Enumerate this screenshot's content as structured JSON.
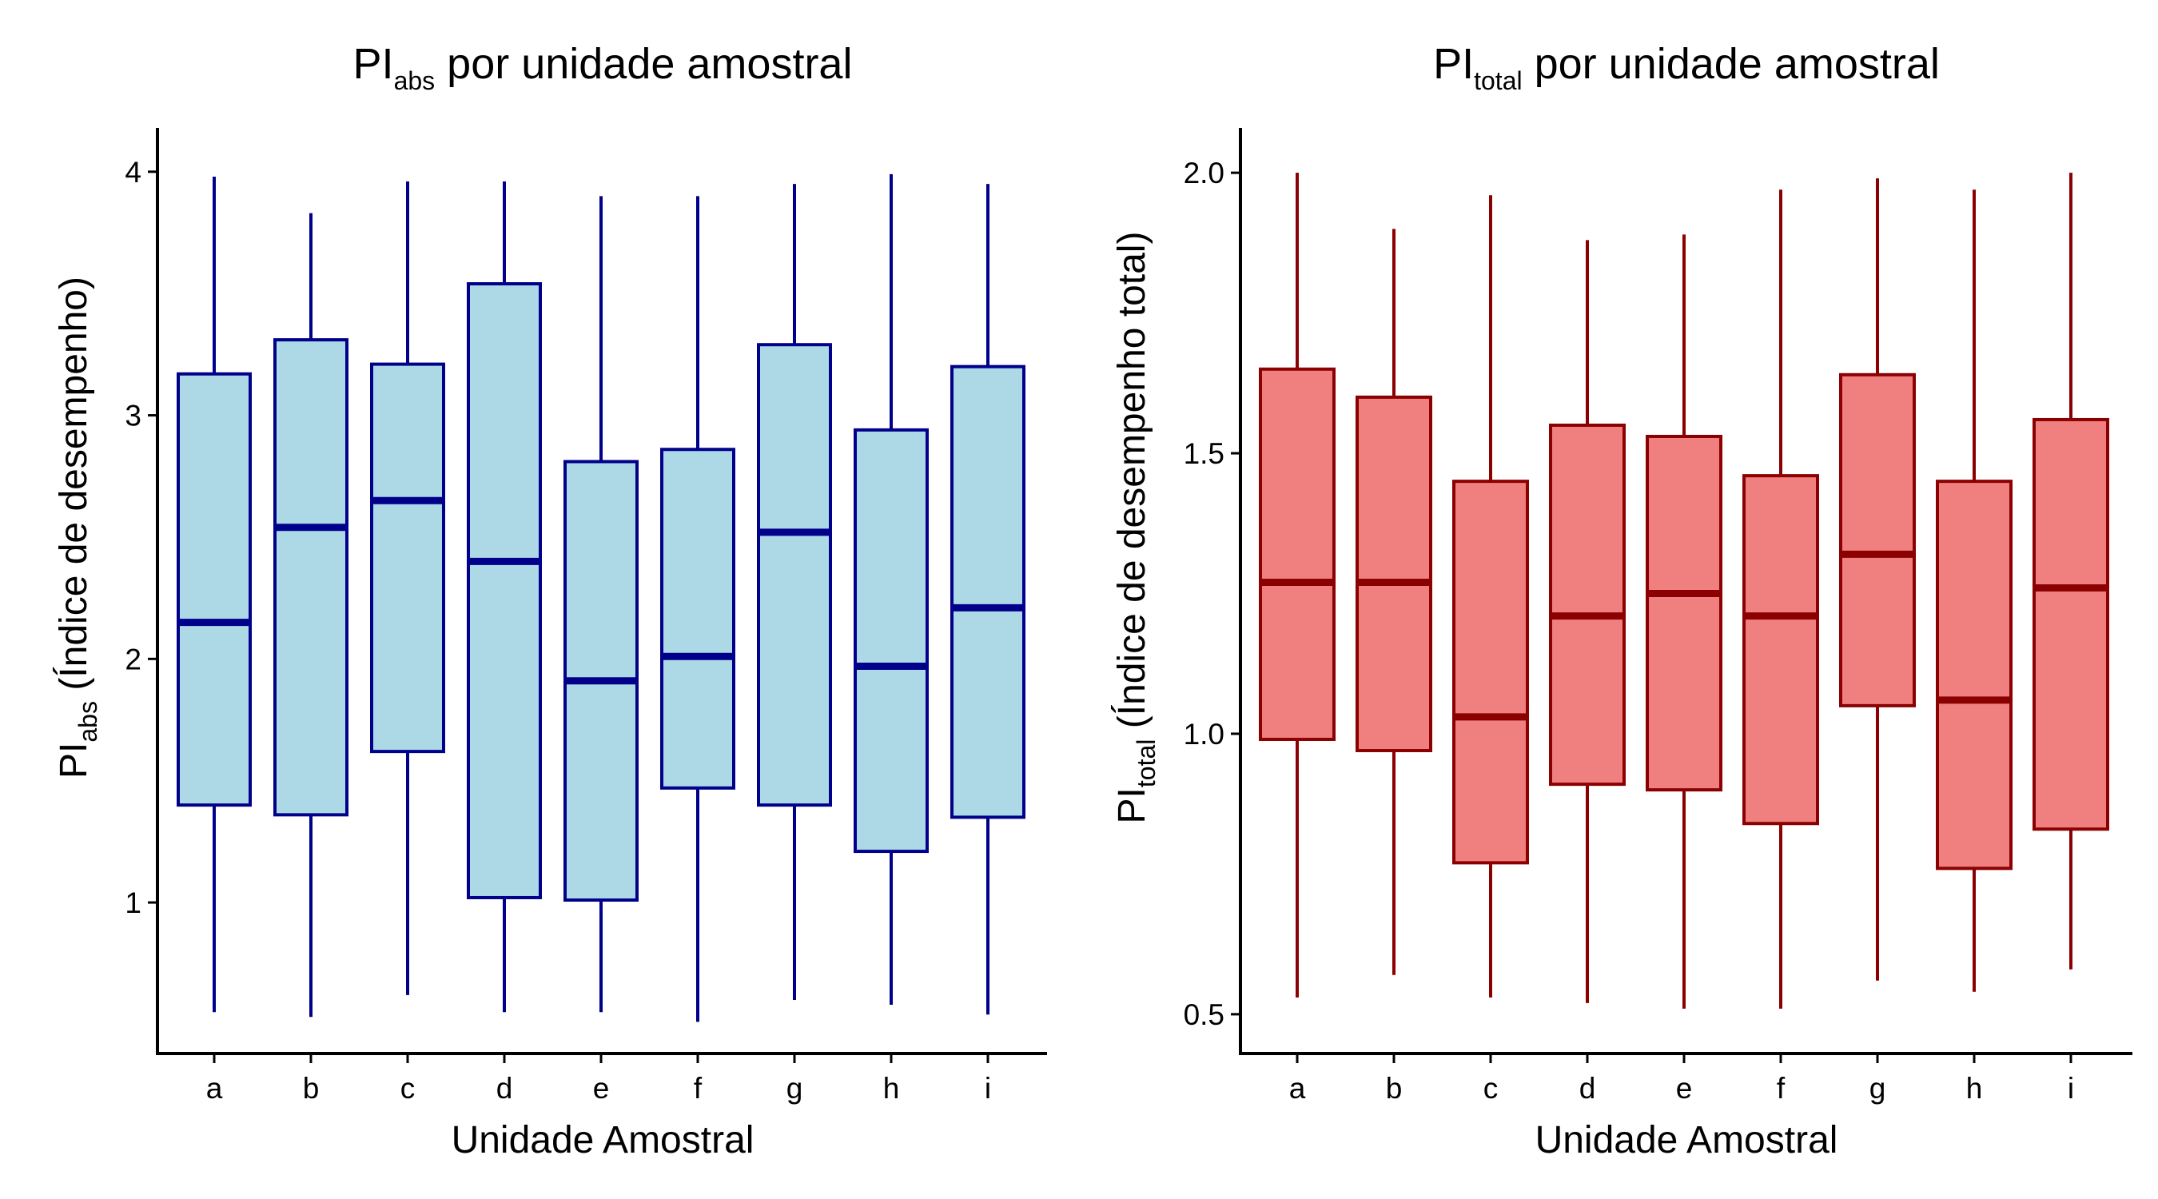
{
  "chart_data": [
    {
      "type": "boxplot",
      "title": {
        "main": "PI",
        "sub": "abs",
        "rest": " por unidade amostral"
      },
      "xlabel": "Unidade Amostral",
      "ylabel": {
        "main": "PI",
        "sub": "abs",
        "rest": " (Índice de desempenho)"
      },
      "categories": [
        "a",
        "b",
        "c",
        "d",
        "e",
        "f",
        "g",
        "h",
        "i"
      ],
      "ylim": [
        0.38,
        4.18
      ],
      "yticks": [
        1,
        2,
        3,
        4
      ],
      "ytick_labels": [
        "1",
        "2",
        "3",
        "4"
      ],
      "colors": {
        "fill": "#ADD8E6",
        "stroke": "#00008B"
      },
      "boxes": [
        {
          "min": 0.55,
          "q1": 1.4,
          "median": 2.15,
          "q3": 3.17,
          "max": 3.98
        },
        {
          "min": 0.53,
          "q1": 1.36,
          "median": 2.54,
          "q3": 3.31,
          "max": 3.83
        },
        {
          "min": 0.62,
          "q1": 1.62,
          "median": 2.65,
          "q3": 3.21,
          "max": 3.96
        },
        {
          "min": 0.55,
          "q1": 1.02,
          "median": 2.4,
          "q3": 3.54,
          "max": 3.96
        },
        {
          "min": 0.55,
          "q1": 1.01,
          "median": 1.91,
          "q3": 2.81,
          "max": 3.9
        },
        {
          "min": 0.51,
          "q1": 1.47,
          "median": 2.01,
          "q3": 2.86,
          "max": 3.9
        },
        {
          "min": 0.6,
          "q1": 1.4,
          "median": 2.52,
          "q3": 3.29,
          "max": 3.95
        },
        {
          "min": 0.58,
          "q1": 1.21,
          "median": 1.97,
          "q3": 2.94,
          "max": 3.99
        },
        {
          "min": 0.54,
          "q1": 1.35,
          "median": 2.21,
          "q3": 3.2,
          "max": 3.95
        }
      ]
    },
    {
      "type": "boxplot",
      "title": {
        "main": "PI",
        "sub": "total",
        "rest": " por unidade amostral"
      },
      "xlabel": "Unidade Amostral",
      "ylabel": {
        "main": "PI",
        "sub": "total",
        "rest": " (Índice de desempenho total)"
      },
      "categories": [
        "a",
        "b",
        "c",
        "d",
        "e",
        "f",
        "g",
        "h",
        "i"
      ],
      "ylim": [
        0.43,
        2.08
      ],
      "yticks": [
        0.5,
        1.0,
        1.5,
        2.0
      ],
      "ytick_labels": [
        "0.5",
        "1.0",
        "1.5",
        "2.0"
      ],
      "colors": {
        "fill": "#F08080",
        "stroke": "#8B0000"
      },
      "boxes": [
        {
          "min": 0.53,
          "q1": 0.99,
          "median": 1.27,
          "q3": 1.65,
          "max": 2.0
        },
        {
          "min": 0.57,
          "q1": 0.97,
          "median": 1.27,
          "q3": 1.6,
          "max": 1.9
        },
        {
          "min": 0.53,
          "q1": 0.77,
          "median": 1.03,
          "q3": 1.45,
          "max": 1.96
        },
        {
          "min": 0.52,
          "q1": 0.91,
          "median": 1.21,
          "q3": 1.55,
          "max": 1.88
        },
        {
          "min": 0.51,
          "q1": 0.9,
          "median": 1.25,
          "q3": 1.53,
          "max": 1.89
        },
        {
          "min": 0.51,
          "q1": 0.84,
          "median": 1.21,
          "q3": 1.46,
          "max": 1.97
        },
        {
          "min": 0.56,
          "q1": 1.05,
          "median": 1.32,
          "q3": 1.64,
          "max": 1.99
        },
        {
          "min": 0.54,
          "q1": 0.76,
          "median": 1.06,
          "q3": 1.45,
          "max": 1.97
        },
        {
          "min": 0.58,
          "q1": 0.83,
          "median": 1.26,
          "q3": 1.56,
          "max": 2.0
        }
      ]
    }
  ]
}
